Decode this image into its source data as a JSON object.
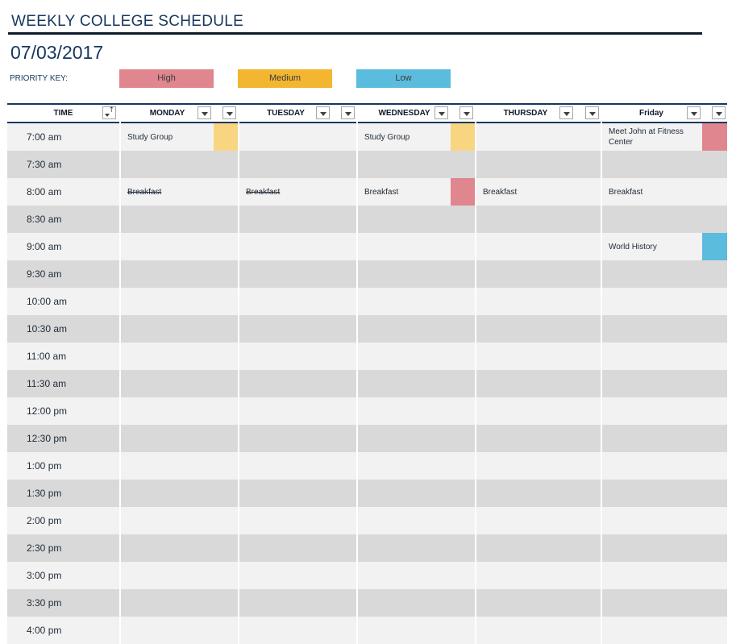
{
  "title": "WEEKLY COLLEGE SCHEDULE",
  "date": "07/03/2017",
  "priority_key": {
    "label": "PRIORITY KEY:",
    "high": {
      "label": "High",
      "color": "#e0868f"
    },
    "medium": {
      "label": "Medium",
      "color": "#f2b630"
    },
    "low": {
      "label": "Low",
      "color": "#5bbcdd"
    }
  },
  "colors": {
    "row_light": "#f2f2f2",
    "row_dark": "#d9d9d9",
    "header_rule": "#17375e",
    "priority_high_cell": "#e0868f",
    "priority_medium_cell": "#f8d580",
    "priority_low_cell": "#5bbcdd"
  },
  "headers": {
    "time": "TIME",
    "monday": "MONDAY",
    "tuesday": "TUESDAY",
    "wednesday": "WEDNESDAY",
    "thursday": "THURSDAY",
    "friday": "Friday"
  },
  "times": [
    "7:00 am",
    "7:30 am",
    "8:00 am",
    "8:30 am",
    "9:00 am",
    "9:30 am",
    "10:00 am",
    "10:30 am",
    "11:00 am",
    "11:30 am",
    "12:00 pm",
    "12:30 pm",
    "1:00 pm",
    "1:30 pm",
    "2:00 pm",
    "2:30 pm",
    "3:00 pm",
    "3:30 pm",
    "4:00 pm"
  ],
  "events": [
    {
      "day": "monday",
      "slot": 0,
      "text": "Study Group",
      "priority": "medium",
      "done": false
    },
    {
      "day": "monday",
      "slot": 2,
      "text": "Breakfast",
      "priority": "",
      "done": true
    },
    {
      "day": "tuesday",
      "slot": 2,
      "text": "Breakfast",
      "priority": "",
      "done": true
    },
    {
      "day": "wednesday",
      "slot": 0,
      "text": "Study Group",
      "priority": "medium",
      "done": false
    },
    {
      "day": "wednesday",
      "slot": 2,
      "text": "Breakfast",
      "priority": "high",
      "done": false
    },
    {
      "day": "thursday",
      "slot": 2,
      "text": "Breakfast",
      "priority": "",
      "done": false
    },
    {
      "day": "friday",
      "slot": 0,
      "text": "Meet John at Fitness Center",
      "priority": "high",
      "done": false
    },
    {
      "day": "friday",
      "slot": 2,
      "text": "Breakfast",
      "priority": "",
      "done": false
    },
    {
      "day": "friday",
      "slot": 4,
      "text": "World History",
      "priority": "low",
      "done": false
    }
  ]
}
